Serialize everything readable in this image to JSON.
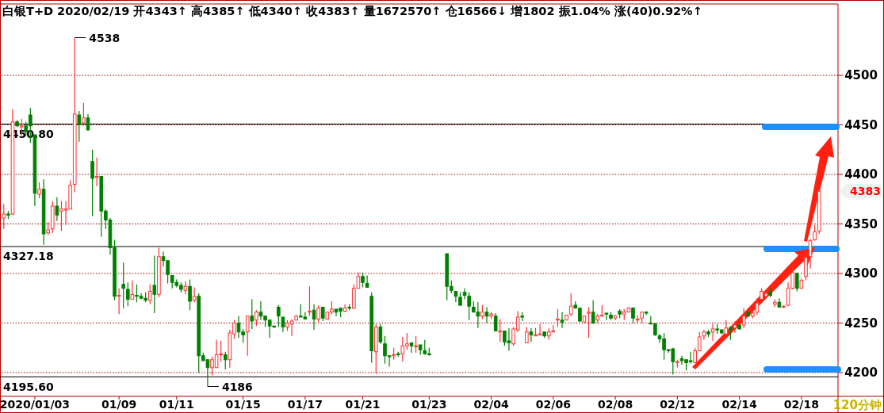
{
  "chart_data": {
    "type": "candlestick",
    "title": "白银T+D 2020/02/19 开4343↑ 高4385↑ 低4340↑ 收4383↑ 量1672570↑ 仓16566↓ 增1802 振1.04% 涨(40)0.92%↑",
    "categories": [
      null,
      null,
      null,
      null,
      null,
      null,
      null,
      "2020/01/03",
      null,
      null,
      null,
      null,
      null,
      null,
      null,
      null,
      null,
      null,
      null,
      null,
      null,
      null,
      null,
      null,
      null,
      null,
      "01/09",
      null,
      null,
      null,
      null,
      null,
      null,
      null,
      null,
      null,
      null,
      null,
      null,
      "01/11",
      null,
      null,
      null,
      null,
      null,
      null,
      null,
      null,
      null,
      null,
      null,
      null,
      null,
      null,
      "01/15",
      null,
      null,
      null,
      null,
      null,
      null,
      null,
      null,
      null,
      null,
      null,
      null,
      null,
      "01/17",
      null,
      null,
      null,
      null,
      null,
      null,
      null,
      null,
      null,
      null,
      null,
      null,
      "01/21",
      null,
      null,
      null,
      null,
      null,
      null,
      null,
      null,
      null,
      null,
      null,
      null,
      null,
      null,
      "01/23",
      null,
      null,
      null,
      null,
      null,
      null,
      null,
      null,
      null,
      null,
      null,
      null,
      null,
      "02/04",
      null,
      null,
      null,
      null,
      null,
      null,
      null,
      null,
      null,
      null,
      null,
      null,
      null,
      "02/06",
      null,
      null,
      null,
      null,
      null,
      null,
      null,
      null,
      null,
      null,
      null,
      null,
      null,
      "02/08",
      null,
      null,
      null,
      null,
      null,
      null,
      null,
      null,
      null,
      null,
      null,
      null,
      null,
      "02/12",
      null,
      null,
      null,
      null,
      null,
      null,
      null,
      null,
      null,
      null,
      null,
      null,
      null,
      "02/14",
      null,
      null,
      null,
      null,
      null,
      null,
      null,
      null,
      null,
      null,
      null,
      null,
      null,
      "02/18",
      null,
      null,
      null,
      null
    ],
    "ohlc": [
      [
        4356,
        4370,
        4345,
        4360
      ],
      [
        4360,
        4363,
        4355,
        4359
      ],
      [
        4360,
        4466,
        4359,
        4453
      ],
      [
        4453,
        4455,
        4448,
        4449
      ],
      [
        4448,
        4456,
        4439,
        4449
      ],
      [
        4449,
        4453,
        4439,
        4443
      ],
      [
        4460,
        4467,
        4432,
        4449
      ],
      [
        4440,
        4440,
        4368,
        4381
      ],
      [
        4380,
        4392,
        4376,
        4385
      ],
      [
        4385,
        4395,
        4329,
        4340
      ],
      [
        4341,
        4352,
        4339,
        4344
      ],
      [
        4345,
        4373,
        4341,
        4368
      ],
      [
        4368,
        4377,
        4353,
        4359
      ],
      [
        4363,
        4373,
        4343,
        4365
      ],
      [
        4364,
        4373,
        4349,
        4365
      ],
      [
        4365,
        4394,
        4365,
        4389
      ],
      [
        4390,
        4538,
        4382,
        4461
      ],
      [
        4460,
        4464,
        4433,
        4450
      ],
      [
        4452,
        4472,
        4449,
        4457
      ],
      [
        4457,
        4461,
        4444,
        4445
      ],
      [
        4413,
        4425,
        4358,
        4396
      ],
      [
        4397,
        4417,
        4388,
        4398
      ],
      [
        4398,
        4398,
        4337,
        4363
      ],
      [
        4363,
        4365,
        4345,
        4354
      ],
      [
        4354,
        4356,
        4319,
        4326
      ],
      [
        4326,
        4334,
        4273,
        4277
      ],
      [
        4277,
        4285,
        4259,
        4278
      ],
      [
        4289,
        4311,
        4265,
        4285
      ],
      [
        4284,
        4291,
        4267,
        4274
      ],
      [
        4274,
        4293,
        4274,
        4279
      ],
      [
        4278,
        4289,
        4271,
        4277
      ],
      [
        4277,
        4280,
        4274,
        4275
      ],
      [
        4275,
        4281,
        4271,
        4273
      ],
      [
        4273,
        4289,
        4269,
        4282
      ],
      [
        4288,
        4318,
        4260,
        4279
      ],
      [
        4279,
        4326,
        4276,
        4317
      ],
      [
        4317,
        4322,
        4307,
        4313
      ],
      [
        4313,
        4313,
        4290,
        4299
      ],
      [
        4298,
        4298,
        4285,
        4291
      ],
      [
        4291,
        4294,
        4286,
        4288
      ],
      [
        4288,
        4291,
        4281,
        4284
      ],
      [
        4283,
        4292,
        4279,
        4287
      ],
      [
        4287,
        4294,
        4263,
        4272
      ],
      [
        4273,
        4286,
        4271,
        4277
      ],
      [
        4277,
        4280,
        4200,
        4217
      ],
      [
        4217,
        4220,
        4212,
        4212
      ],
      [
        4213,
        4213,
        4186,
        4205
      ],
      [
        4205,
        4216,
        4197,
        4213
      ],
      [
        4205,
        4233,
        4205,
        4218
      ],
      [
        4218,
        4232,
        4211,
        4219
      ],
      [
        4218,
        4221,
        4203,
        4213
      ],
      [
        4213,
        4243,
        4205,
        4240
      ],
      [
        4239,
        4253,
        4234,
        4250
      ],
      [
        4250,
        4257,
        4235,
        4241
      ],
      [
        4241,
        4244,
        4230,
        4238
      ],
      [
        4241,
        4257,
        4217,
        4257
      ],
      [
        4257,
        4274,
        4244,
        4252
      ],
      [
        4253,
        4263,
        4247,
        4261
      ],
      [
        4261,
        4272,
        4253,
        4257
      ],
      [
        4257,
        4257,
        4246,
        4253
      ],
      [
        4253,
        4253,
        4235,
        4247
      ],
      [
        4247,
        4247,
        4245,
        4246
      ],
      [
        4266,
        4268,
        4246,
        4257
      ],
      [
        4256,
        4256,
        4241,
        4246
      ],
      [
        4246,
        4253,
        4242,
        4250
      ],
      [
        4249,
        4254,
        4237,
        4252
      ],
      [
        4253,
        4258,
        4253,
        4257
      ],
      [
        4257,
        4269,
        4256,
        4256
      ],
      [
        4256,
        4261,
        4254,
        4254
      ],
      [
        4261,
        4287,
        4257,
        4262
      ],
      [
        4263,
        4269,
        4243,
        4254
      ],
      [
        4254,
        4268,
        4251,
        4265
      ],
      [
        4266,
        4266,
        4252,
        4255
      ],
      [
        4254,
        4261,
        4254,
        4261
      ],
      [
        4261,
        4272,
        4259,
        4264
      ],
      [
        4264,
        4264,
        4257,
        4261
      ],
      [
        4265,
        4265,
        4256,
        4262
      ],
      [
        4262,
        4269,
        4261,
        4265
      ],
      [
        4266,
        4269,
        4263,
        4265
      ],
      [
        4265,
        4289,
        4264,
        4285
      ],
      [
        4285,
        4301,
        4285,
        4297
      ],
      [
        4297,
        4301,
        4286,
        4291
      ],
      [
        4290,
        4298,
        4286,
        4286
      ],
      [
        4277,
        4281,
        4210,
        4222
      ],
      [
        4221,
        4249,
        4199,
        4246
      ],
      [
        4246,
        4249,
        4229,
        4231
      ],
      [
        4229,
        4237,
        4209,
        4217
      ],
      [
        4217,
        4217,
        4206,
        4216
      ],
      [
        4217,
        4225,
        4213,
        4218
      ],
      [
        4219,
        4221,
        4216,
        4218
      ],
      [
        4219,
        4236,
        4211,
        4227
      ],
      [
        4227,
        4240,
        4223,
        4229
      ],
      [
        4230,
        4230,
        4220,
        4227
      ],
      [
        4226,
        4237,
        4220,
        4227
      ],
      [
        4228,
        4228,
        4218,
        4223
      ],
      [
        4222,
        4233,
        4218,
        4219
      ],
      [
        4219,
        4225,
        4217,
        4218
      ],
      null,
      null,
      null,
      [
        4320,
        4320,
        4273,
        4287
      ],
      [
        4287,
        4293,
        4280,
        4283
      ],
      [
        4282,
        4282,
        4271,
        4277
      ],
      [
        4276,
        4281,
        4267,
        4268
      ],
      [
        4281,
        4285,
        4274,
        4278
      ],
      [
        4277,
        4281,
        4253,
        4267
      ],
      [
        4266,
        4272,
        4261,
        4261
      ],
      [
        4261,
        4271,
        4245,
        4257
      ],
      [
        4257,
        4268,
        4254,
        4261
      ],
      [
        4261,
        4266,
        4250,
        4257
      ],
      [
        4257,
        4261,
        4254,
        4259
      ],
      [
        4257,
        4260,
        4242,
        4242
      ],
      [
        4241,
        4254,
        4231,
        4242
      ],
      [
        4242,
        4242,
        4227,
        4231
      ],
      [
        4232,
        4245,
        4222,
        4230
      ],
      [
        4229,
        4246,
        4227,
        4244
      ],
      [
        4243,
        4262,
        4241,
        4256
      ],
      [
        4257,
        4261,
        4252,
        4256
      ],
      [
        4230,
        4246,
        4230,
        4241
      ],
      [
        4241,
        4245,
        4231,
        4238
      ],
      [
        4237,
        4245,
        4237,
        4238
      ],
      [
        4238,
        4249,
        4238,
        4239
      ],
      [
        4241,
        4241,
        4235,
        4237
      ],
      [
        4237,
        4245,
        4233,
        4241
      ],
      [
        4241,
        4248,
        4241,
        4242
      ],
      [
        4253,
        4264,
        4246,
        4254
      ],
      [
        4253,
        4261,
        4245,
        4251
      ],
      [
        4253,
        4258,
        4253,
        4258
      ],
      [
        4259,
        4280,
        4257,
        4267
      ],
      [
        4268,
        4272,
        4265,
        4265
      ],
      [
        4265,
        4265,
        4251,
        4252
      ],
      [
        4251,
        4257,
        4251,
        4257
      ],
      [
        4260,
        4266,
        4235,
        4261
      ],
      [
        4261,
        4273,
        4249,
        4250
      ],
      [
        4253,
        4259,
        4250,
        4257
      ],
      [
        4257,
        4268,
        4257,
        4258
      ],
      [
        4260,
        4260,
        4253,
        4259
      ],
      [
        4258,
        4261,
        4253,
        4255
      ],
      [
        4255,
        4258,
        4253,
        4257
      ],
      [
        4262,
        4264,
        4255,
        4259
      ],
      [
        4259,
        4264,
        4253,
        4261
      ],
      [
        4261,
        4266,
        4261,
        4265
      ],
      [
        4265,
        4266,
        4250,
        4255
      ],
      [
        4253,
        4258,
        4250,
        4254
      ],
      [
        4255,
        4261,
        4250,
        4261
      ],
      [
        4261,
        4262,
        4258,
        4260
      ],
      [
        4250,
        4257,
        4249,
        4249
      ],
      [
        4249,
        4250,
        4237,
        4238
      ],
      [
        4237,
        4239,
        4230,
        4234
      ],
      [
        4234,
        4240,
        4213,
        4223
      ],
      [
        4223,
        4224,
        4220,
        4222
      ],
      [
        4224,
        4225,
        4198,
        4211
      ],
      [
        4210,
        4213,
        4205,
        4211
      ],
      [
        4214,
        4217,
        4208,
        4212
      ],
      [
        4213,
        4213,
        4202,
        4210
      ],
      [
        4212,
        4221,
        4209,
        4211
      ],
      [
        4210,
        4225,
        4210,
        4222
      ],
      [
        4222,
        4241,
        4222,
        4236
      ],
      [
        4237,
        4243,
        4233,
        4241
      ],
      [
        4241,
        4243,
        4236,
        4239
      ],
      [
        4241,
        4249,
        4232,
        4244
      ],
      [
        4244,
        4249,
        4239,
        4243
      ],
      [
        4243,
        4244,
        4239,
        4240
      ],
      [
        4239,
        4253,
        4238,
        4245
      ],
      [
        4245,
        4247,
        4233,
        4244
      ],
      [
        4245,
        4252,
        4240,
        4248
      ],
      [
        4248,
        4249,
        4244,
        4244
      ],
      [
        4248,
        4265,
        4245,
        4257
      ],
      [
        4261,
        4262,
        4257,
        4257
      ],
      [
        4257,
        4262,
        4255,
        4260
      ],
      [
        4261,
        4275,
        4258,
        4270
      ],
      [
        4274,
        4285,
        4273,
        4282
      ],
      [
        4277,
        4283,
        4276,
        4280
      ],
      [
        4281,
        4285,
        4276,
        4278
      ],
      [
        4269,
        4274,
        4266,
        4271
      ],
      [
        4271,
        4275,
        4266,
        4266
      ],
      [
        4266,
        4268,
        4265,
        4267
      ],
      [
        4268,
        4291,
        4267,
        4285
      ],
      [
        4285,
        4307,
        4284,
        4301
      ],
      [
        4300,
        4301,
        4282,
        4285
      ],
      [
        4285,
        4295,
        4285,
        4293
      ],
      [
        4297,
        4321,
        4293,
        4316
      ],
      [
        4317,
        4335,
        4305,
        4333
      ],
      [
        4334,
        4349,
        4333,
        4342
      ],
      [
        4343,
        4385,
        4340,
        4383
      ]
    ],
    "colors": [
      "#ff3232",
      "#008000",
      "#ff3232",
      "#008000",
      "#ff3232",
      "#008000",
      "#008000",
      "#008000",
      "#ff3232",
      "#008000",
      "#ff3232",
      "#ff3232",
      "#008000",
      "#ff3232",
      "#ff3232",
      "#ff3232",
      "#ff3232",
      "#008000",
      "#ff3232",
      "#008000",
      "#008000",
      "#ff3232",
      "#008000",
      "#008000",
      "#008000",
      "#008000",
      "#ff3232",
      "#008000",
      "#008000",
      "#ff3232",
      "#008000",
      "#008000",
      "#008000",
      "#ff3232",
      "#008000",
      "#ff3232",
      "#008000",
      "#008000",
      "#008000",
      "#008000",
      "#008000",
      "#ff3232",
      "#008000",
      "#ff3232",
      "#008000",
      "#008000",
      "#008000",
      "#ff3232",
      "#ff3232",
      "#ff3232",
      "#008000",
      "#ff3232",
      "#ff3232",
      "#008000",
      "#008000",
      "#ff3232",
      "#008000",
      "#ff3232",
      "#008000",
      "#008000",
      "#008000",
      "#008000",
      "#008000",
      "#008000",
      "#ff3232",
      "#ff3232",
      "#ff3232",
      "#008000",
      "#008000",
      "#ff3232",
      "#008000",
      "#ff3232",
      "#008000",
      "#ff3232",
      "#ff3232",
      "#008000",
      "#008000",
      "#ff3232",
      "#008000",
      "#ff3232",
      "#ff3232",
      "#008000",
      "#008000",
      "#008000",
      "#ff3232",
      "#008000",
      "#008000",
      "#008000",
      "#ff3232",
      "#008000",
      "#ff3232",
      "#ff3232",
      "#008000",
      "#ff3232",
      "#008000",
      "#008000",
      "#008000",
      null,
      null,
      null,
      "#008000",
      "#008000",
      "#008000",
      "#008000",
      "#008000",
      "#008000",
      "#008000",
      "#008000",
      "#ff3232",
      "#008000",
      "#ff3232",
      "#008000",
      "#ff3232",
      "#008000",
      "#008000",
      "#ff3232",
      "#ff3232",
      "#008000",
      "#ff3232",
      "#008000",
      "#ff3232",
      "#ff3232",
      "#008000",
      "#ff3232",
      "#ff3232",
      "#ff3232",
      "#008000",
      "#ff3232",
      "#ff3232",
      "#008000",
      "#008000",
      "#ff3232",
      "#ff3232",
      "#008000",
      "#ff3232",
      "#ff3232",
      "#008000",
      "#008000",
      "#ff3232",
      "#008000",
      "#ff3232",
      "#ff3232",
      "#008000",
      "#ff3232",
      "#ff3232",
      "#008000",
      "#008000",
      "#008000",
      "#008000",
      "#008000",
      "#008000",
      "#008000",
      "#ff3232",
      "#008000",
      "#008000",
      "#008000",
      "#ff3232",
      "#ff3232",
      "#ff3232",
      "#008000",
      "#ff3232",
      "#008000",
      "#008000",
      "#ff3232",
      "#008000",
      "#ff3232",
      "#008000",
      "#ff3232",
      "#008000",
      "#ff3232",
      "#ff3232",
      "#ff3232",
      "#ff3232",
      "#008000",
      "#ff3232",
      "#008000",
      "#ff3232",
      "#ff3232",
      "#ff3232",
      "#008000",
      "#ff3232",
      "#ff3232",
      "#ff3232",
      "#ff3232",
      "#ff3232"
    ],
    "ylim": [
      4176,
      4572
    ],
    "yticks": [
      4200,
      4250,
      4300,
      4350,
      4400,
      4450,
      4500
    ],
    "grid": "y",
    "ref_lines": [
      {
        "axis": "y",
        "value": 4450.8,
        "label": "4450.80",
        "color": "#000000"
      },
      {
        "axis": "y",
        "value": 4327.18,
        "label": "4327.18",
        "color": "#000000"
      },
      {
        "axis": "y",
        "value": 4195.6,
        "label": "4195.60",
        "color": "#000000"
      }
    ],
    "annotations": [
      "4538",
      "4186",
      "4383",
      "120分钟"
    ]
  }
}
